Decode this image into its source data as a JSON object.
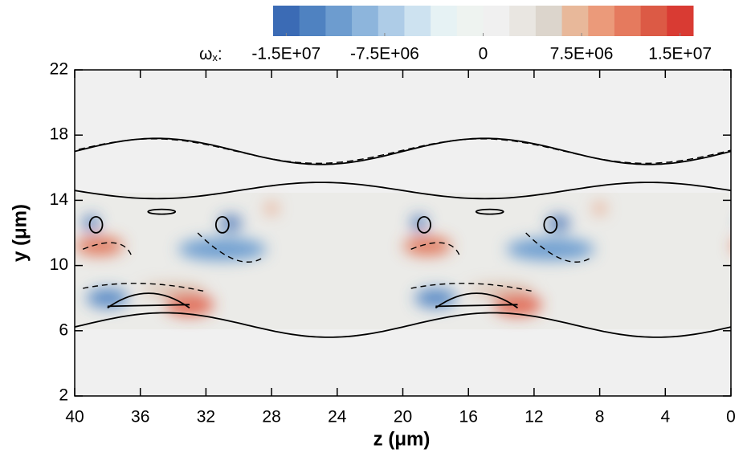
{
  "chart_data": {
    "type": "contour",
    "xlabel": "z (μm)",
    "ylabel": "y (μm)",
    "xlim": [
      40,
      0
    ],
    "ylim": [
      2,
      22
    ],
    "xticks": [
      40,
      36,
      32,
      28,
      24,
      20,
      16,
      12,
      8,
      4,
      0
    ],
    "yticks": [
      2,
      6,
      10,
      14,
      18,
      22
    ],
    "colorbar": {
      "label": [
        "ω",
        "x",
        ":"
      ],
      "lim": [
        -16000000,
        16000000
      ],
      "ticks": [
        {
          "value": -15000000,
          "label": "-1.5E+07"
        },
        {
          "value": -7500000,
          "label": "-7.5E+06"
        },
        0,
        {
          "value": 7500000,
          "label": "7.5E+06"
        },
        {
          "value": 15000000,
          "label": "1.5E+07"
        }
      ],
      "colors": [
        "#3b6bb5",
        "#4f82c1",
        "#6d9ccf",
        "#8db5dc",
        "#aecce7",
        "#cde2f0",
        "#e6f2f4",
        "#eef3f0",
        "#f0f0f0",
        "#e9e6e1",
        "#dcd5cc",
        "#e8b89a",
        "#eb9a7a",
        "#e57a5e",
        "#dc5a45",
        "#d93b33"
      ]
    }
  }
}
